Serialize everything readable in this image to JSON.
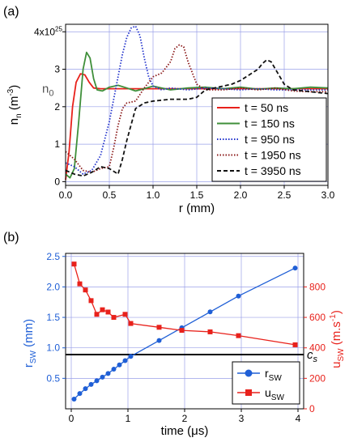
{
  "chart_data": [
    {
      "panel_label": "(a)",
      "type": "line",
      "xlabel": "r (mm)",
      "ylabel": "n_n (m^-3)",
      "ylabel_main": "n",
      "ylabel_sub": "n",
      "ylabel_open": " (m",
      "ylabel_exp": "-3",
      "ylabel_close": ")",
      "xlim": [
        0,
        3.0
      ],
      "ylim": [
        -0.1,
        4.2
      ],
      "xticks": [
        0.0,
        0.5,
        1.0,
        1.5,
        2.0,
        2.5,
        3.0
      ],
      "xtick_labels": [
        "0.0",
        "0.5",
        "1.0",
        "1.5",
        "2.0",
        "2.5",
        "3.0"
      ],
      "yticks": [
        0,
        1,
        2,
        3,
        4
      ],
      "ytick_labels": [
        "0",
        "1",
        "2",
        "3",
        "4x10"
      ],
      "ytick_top_exp": "25",
      "grid": true,
      "legend_position": "bottom-right",
      "annotation_n0": {
        "main": "n",
        "sub": "0",
        "y": 2.48
      },
      "series": [
        {
          "name": "t = 50 ns",
          "color": "#e8211b",
          "dash": "solid",
          "x": [
            0,
            0.04,
            0.08,
            0.12,
            0.17,
            0.22,
            0.27,
            0.32,
            0.4,
            0.5,
            0.7,
            1.0,
            1.5,
            2.0,
            2.5,
            3.0
          ],
          "y": [
            0.05,
            0.8,
            2.0,
            2.65,
            2.88,
            2.85,
            2.65,
            2.5,
            2.48,
            2.48,
            2.48,
            2.48,
            2.48,
            2.48,
            2.48,
            2.48
          ]
        },
        {
          "name": "t = 150 ns",
          "color": "#3f8f3a",
          "dash": "solid",
          "x": [
            0,
            0.05,
            0.1,
            0.15,
            0.2,
            0.24,
            0.28,
            0.32,
            0.36,
            0.42,
            0.5,
            0.6,
            0.7,
            0.8,
            0.9,
            1.0,
            1.1,
            1.2,
            1.4,
            1.6,
            1.8,
            2.0,
            2.2,
            2.4,
            2.6,
            2.8,
            3.0
          ],
          "y": [
            0.2,
            0.1,
            0.35,
            1.6,
            3.0,
            3.45,
            3.3,
            2.75,
            2.45,
            2.42,
            2.52,
            2.57,
            2.5,
            2.42,
            2.48,
            2.55,
            2.5,
            2.45,
            2.5,
            2.52,
            2.48,
            2.52,
            2.47,
            2.5,
            2.48,
            2.52,
            2.5
          ]
        },
        {
          "name": "t = 950 ns",
          "color": "#2233cc",
          "dash": "dotted",
          "x": [
            0,
            0.1,
            0.2,
            0.3,
            0.4,
            0.5,
            0.6,
            0.65,
            0.7,
            0.75,
            0.8,
            0.85,
            0.9,
            0.95,
            1.0,
            1.1,
            1.2,
            1.4,
            1.6,
            1.8,
            2.0,
            2.2,
            2.4,
            2.6,
            2.8,
            3.0
          ],
          "y": [
            0.5,
            0.4,
            0.2,
            0.3,
            0.7,
            1.6,
            2.8,
            3.4,
            3.85,
            4.1,
            4.15,
            3.9,
            3.3,
            2.8,
            2.55,
            2.45,
            2.5,
            2.45,
            2.5,
            2.48,
            2.45,
            2.48,
            2.45,
            2.45,
            2.45,
            2.45
          ]
        },
        {
          "name": "t = 1950 ns",
          "color": "#8b1a1a",
          "dash": "dotted",
          "x": [
            0,
            0.1,
            0.2,
            0.3,
            0.4,
            0.5,
            0.55,
            0.6,
            0.65,
            0.7,
            0.8,
            0.9,
            1.0,
            1.1,
            1.2,
            1.25,
            1.3,
            1.35,
            1.4,
            1.5,
            1.6,
            1.8,
            2.0,
            2.2,
            2.4,
            2.6,
            2.8,
            3.0
          ],
          "y": [
            0.8,
            0.6,
            0.3,
            0.25,
            0.35,
            0.4,
            0.9,
            1.5,
            1.95,
            2.1,
            2.15,
            2.5,
            2.8,
            2.9,
            3.2,
            3.55,
            3.65,
            3.6,
            3.2,
            2.6,
            2.45,
            2.45,
            2.5,
            2.45,
            2.5,
            2.42,
            2.4,
            2.4
          ]
        },
        {
          "name": "t = 3950 ns",
          "color": "#111111",
          "dash": "dashed",
          "x": [
            0,
            0.1,
            0.2,
            0.3,
            0.4,
            0.5,
            0.6,
            0.65,
            0.7,
            0.8,
            0.9,
            1.0,
            1.2,
            1.4,
            1.5,
            1.6,
            1.7,
            1.8,
            1.9,
            2.0,
            2.1,
            2.2,
            2.25,
            2.3,
            2.35,
            2.4,
            2.5,
            2.6,
            2.8,
            3.0
          ],
          "y": [
            0.3,
            0.2,
            0.15,
            0.25,
            0.4,
            0.35,
            0.2,
            0.6,
            1.1,
            1.95,
            2.1,
            2.15,
            2.2,
            2.2,
            2.25,
            2.45,
            2.5,
            2.55,
            2.6,
            2.7,
            2.85,
            3.0,
            3.15,
            3.25,
            3.2,
            3.0,
            2.6,
            2.45,
            2.4,
            2.35
          ]
        }
      ]
    },
    {
      "panel_label": "(b)",
      "type": "line",
      "xlabel": "time (μs)",
      "ylabel_left": "r_SW (mm)",
      "ylabel_left_main": "r",
      "ylabel_left_sub": "SW",
      "ylabel_left_unit": " (mm)",
      "ylabel_right": "u_SW (m.s^-1)",
      "ylabel_right_main": "u",
      "ylabel_right_sub": "SW",
      "ylabel_right_unit": " (m.s",
      "ylabel_right_exp": "-1",
      "ylabel_right_close": ")",
      "xlim": [
        -0.1,
        4.1
      ],
      "ylim_left": [
        0,
        2.55
      ],
      "ylim_right": [
        0,
        1020
      ],
      "xticks": [
        0,
        1,
        2,
        3,
        4
      ],
      "xtick_labels": [
        "0",
        "1",
        "2",
        "3",
        "4"
      ],
      "yticks_left": [
        0.5,
        1.0,
        1.5,
        2.0,
        2.5
      ],
      "yticks_left_labels": [
        "0.5",
        "1.0",
        "1.5",
        "2.0",
        "2.5"
      ],
      "yticks_right": [
        0,
        200,
        400,
        600,
        800
      ],
      "yticks_right_labels": [
        "0",
        "200",
        "400",
        "600",
        "800"
      ],
      "grid": true,
      "legend_position": "bottom-right",
      "hline": {
        "y": 0.89,
        "label_main": "c",
        "label_sub": "s",
        "color": "#000000"
      },
      "series": [
        {
          "name": "r_SW",
          "name_main": "r",
          "name_sub": "SW",
          "axis": "left",
          "color": "#1f5fd6",
          "marker": "circle",
          "x": [
            0.05,
            0.15,
            0.25,
            0.35,
            0.45,
            0.55,
            0.65,
            0.75,
            0.85,
            0.95,
            1.05,
            1.55,
            1.95,
            2.45,
            2.95,
            3.95
          ],
          "y": [
            0.16,
            0.25,
            0.33,
            0.4,
            0.46,
            0.52,
            0.58,
            0.65,
            0.72,
            0.79,
            0.86,
            1.12,
            1.33,
            1.59,
            1.85,
            2.31
          ]
        },
        {
          "name": "u_SW",
          "name_main": "u",
          "name_sub": "SW",
          "axis": "right",
          "color": "#e8211b",
          "marker": "square",
          "x": [
            0.05,
            0.15,
            0.25,
            0.35,
            0.45,
            0.55,
            0.65,
            0.75,
            0.95,
            1.05,
            1.55,
            1.95,
            2.45,
            2.95,
            3.95
          ],
          "y": [
            950,
            820,
            780,
            710,
            620,
            650,
            635,
            600,
            620,
            560,
            535,
            515,
            505,
            480,
            420
          ]
        }
      ]
    }
  ]
}
